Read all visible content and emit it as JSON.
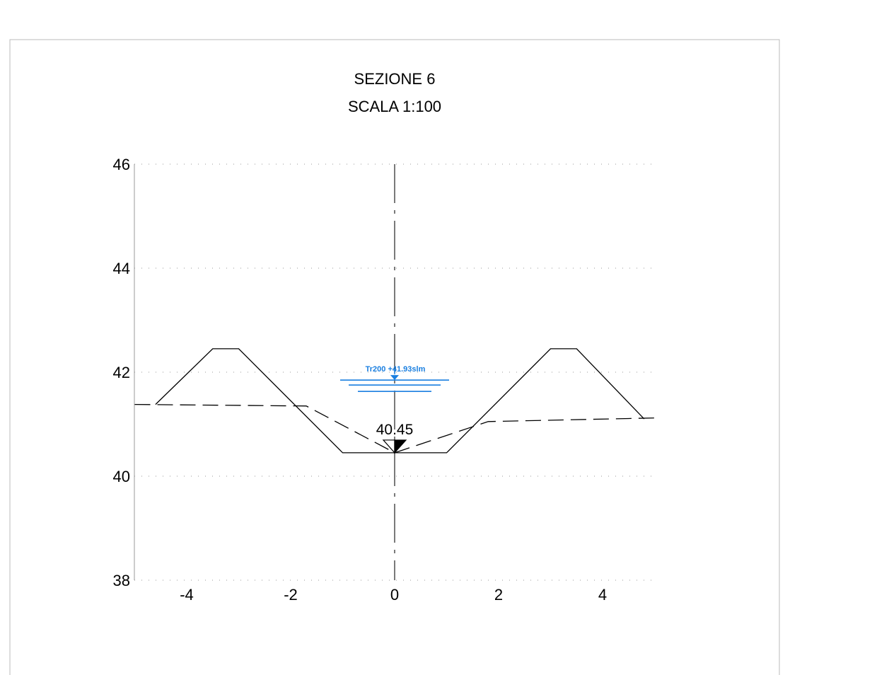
{
  "title": "SEZIONE 6",
  "subtitle": "SCALA 1:100",
  "chart_data": {
    "type": "line",
    "xlim": [
      -5,
      5
    ],
    "ylim": [
      38,
      46
    ],
    "x_ticks": [
      -4,
      -2,
      0,
      2,
      4
    ],
    "y_ticks": [
      38,
      40,
      42,
      44,
      46
    ],
    "x_tick_labels": [
      "-4",
      "-2",
      "0",
      "2",
      "4"
    ],
    "y_tick_labels": [
      "38",
      "40",
      "42",
      "44",
      "46"
    ],
    "grid": "horizontal-dotted",
    "series": [
      {
        "style": "solid",
        "points": [
          [
            -4.6,
            41.38
          ],
          [
            -3.5,
            42.45
          ],
          [
            -3.0,
            42.45
          ],
          [
            -1.0,
            40.45
          ],
          [
            1.0,
            40.45
          ],
          [
            3.0,
            42.45
          ],
          [
            3.5,
            42.45
          ],
          [
            4.8,
            41.1
          ]
        ]
      },
      {
        "style": "dashed",
        "points": [
          [
            -5.0,
            41.38
          ],
          [
            -1.7,
            41.35
          ],
          [
            0.0,
            40.45
          ],
          [
            1.8,
            41.05
          ],
          [
            5.0,
            41.12
          ]
        ]
      }
    ],
    "centerline_x": 0,
    "thalweg": {
      "x": 0,
      "y": 40.45,
      "label": "40.45"
    },
    "water_level": {
      "x": 0,
      "y": 41.93,
      "label": "Tr200 +41.93slm",
      "color": "#1a7fe0"
    }
  }
}
